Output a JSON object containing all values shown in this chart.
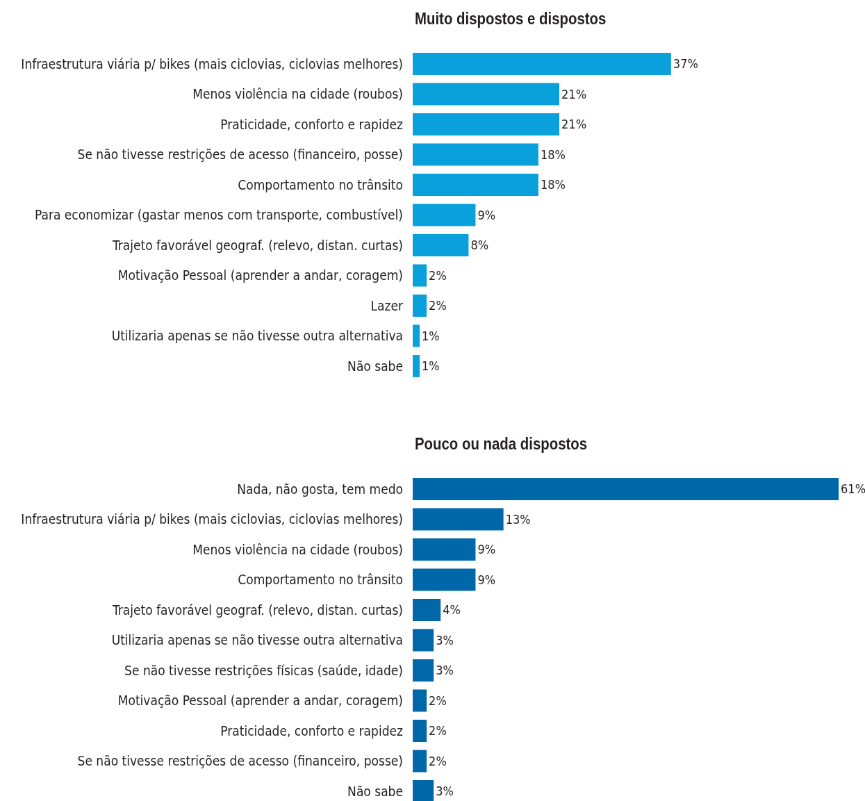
{
  "chart_data": [
    {
      "type": "bar",
      "orientation": "horizontal",
      "title": "Muito dispostos e dispostos",
      "categories": [
        "Infraestrutura viária p/ bikes (mais ciclovias, ciclovias melhores)",
        "Menos violência na cidade (roubos)",
        "Praticidade, conforto e rapidez",
        "Se não tivesse restrições de acesso (financeiro, posse)",
        "Comportamento no trânsito",
        "Para economizar (gastar menos com transporte, combustível)",
        "Trajeto favorável geograf. (relevo, distan. curtas)",
        "Motivação Pessoal (aprender a andar, coragem)",
        "Lazer",
        "Utilizaria apenas se não tivesse outra alternativa",
        "Não sabe"
      ],
      "series": [
        {
          "color": "#0aa0dc",
          "values": [
            37,
            21,
            21,
            18,
            18,
            9,
            8,
            2,
            2,
            1,
            1
          ],
          "value_labels": [
            "37%",
            "21%",
            "21%",
            "18%",
            "18%",
            "9%",
            "8%",
            "2%",
            "2%",
            "1%",
            "1%"
          ]
        }
      ]
    },
    {
      "type": "bar",
      "orientation": "horizontal",
      "title": "Pouco ou nada dispostos",
      "categories": [
        "Nada, não gosta, tem medo",
        "Infraestrutura viária p/ bikes (mais ciclovias, ciclovias melhores)",
        "Menos violência na cidade (roubos)",
        "Comportamento no trânsito",
        "Trajeto favorável geograf. (relevo, distan. curtas)",
        "Utilizaria apenas se não tivesse outra alternativa",
        "Se não tivesse restrições físicas (saúde, idade)",
        "Motivação Pessoal (aprender a andar, coragem)",
        "Praticidade, conforto e rapidez",
        "Se não tivesse restrições de acesso (financeiro, posse)",
        "Não sabe"
      ],
      "series": [
        {
          "color": "#0067a8",
          "values": [
            61,
            13,
            9,
            9,
            4,
            3,
            3,
            2,
            2,
            2,
            3
          ],
          "value_labels": [
            "61%",
            "13%",
            "9%",
            "9%",
            "4%",
            "3%",
            "3%",
            "2%",
            "2%",
            "2%",
            "3%"
          ]
        }
      ]
    }
  ]
}
